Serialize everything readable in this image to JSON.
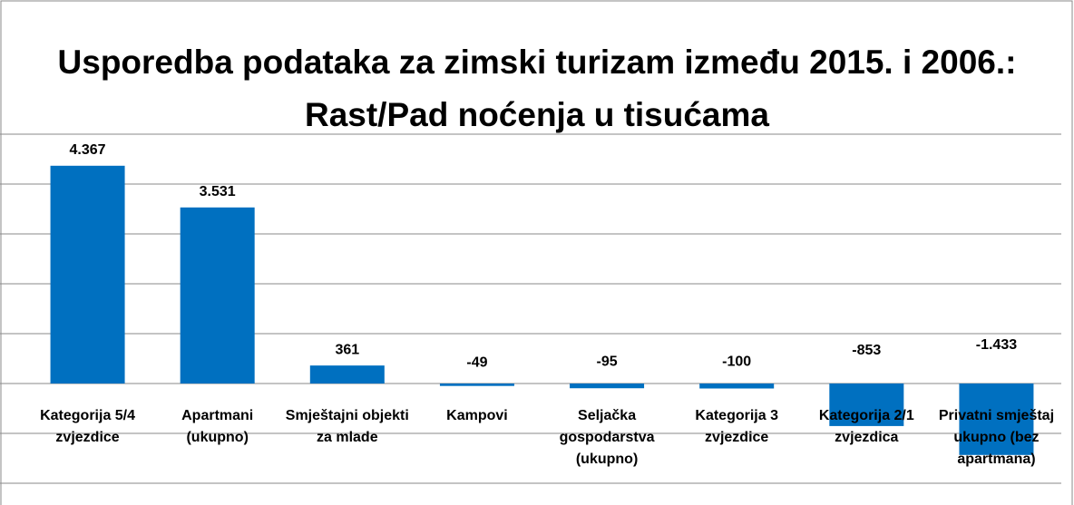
{
  "chart_data": {
    "type": "bar",
    "title": "Usporedba podataka za zimski turizam između 2015. i 2006.: Rast/Pad noćenja u tisućama",
    "categories": [
      "Kategorija 5/4 zvjezdice",
      "Apartmani (ukupno)",
      "Smještajni objekti za mlade",
      "Kampovi",
      "Seljačka gospodarstva (ukupno)",
      "Kategorija 3 zvjezdice",
      "Kategorija 2/1 zvjezdica",
      "Privatni smještaj ukupno (bez apartmana)"
    ],
    "values": [
      4367,
      3531,
      361,
      -49,
      -95,
      -100,
      -853,
      -1433
    ],
    "value_labels": [
      "4.367",
      "3.531",
      "361",
      "-49",
      "-95",
      "-100",
      "-853",
      "-1.433"
    ],
    "color": "#0070c0",
    "ylim": [
      -2000,
      5000
    ],
    "yticks": [
      -2000,
      -1000,
      0,
      1000,
      2000,
      3000,
      4000,
      5000
    ],
    "grid": true
  }
}
